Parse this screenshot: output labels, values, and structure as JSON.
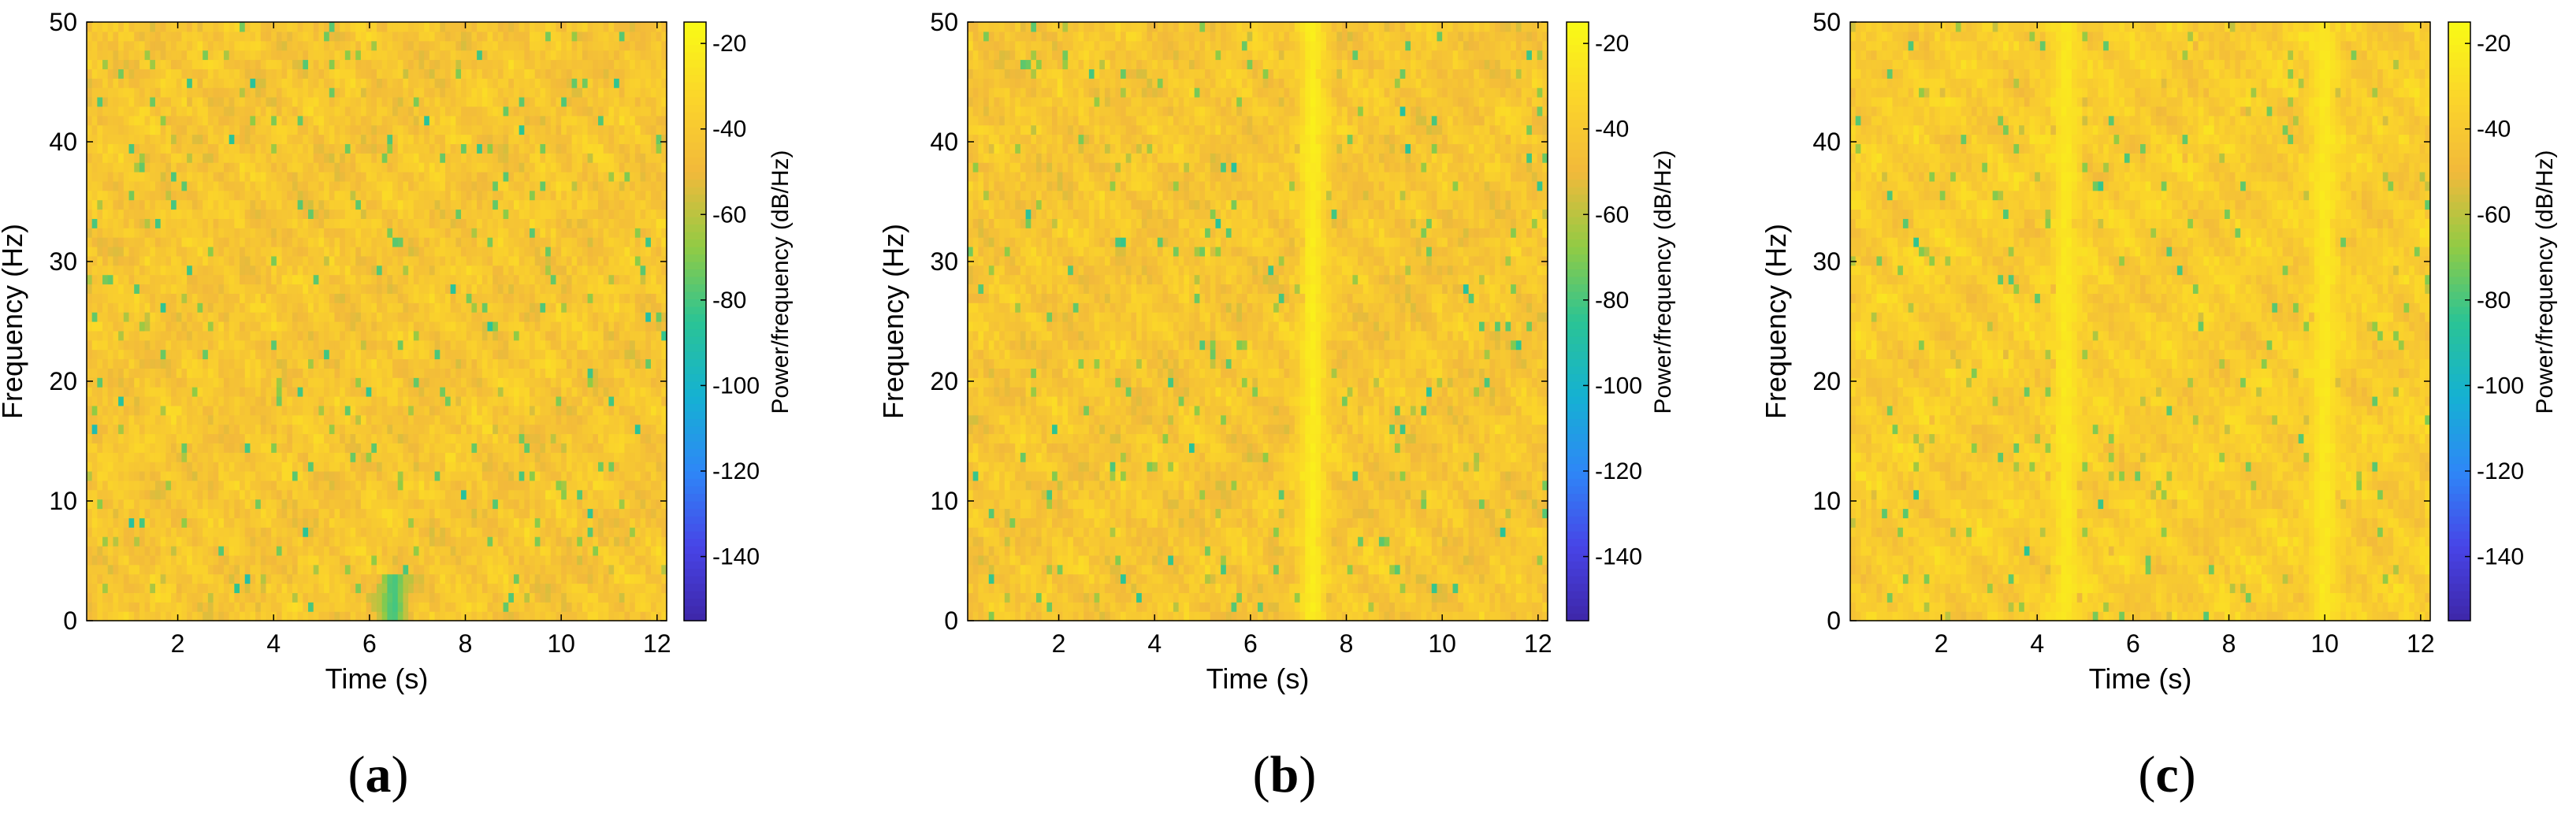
{
  "colors": {
    "colormap": [
      "#3e26a8",
      "#4745e7",
      "#2e87f7",
      "#15b1d2",
      "#2ac495",
      "#91cb44",
      "#f2b93b",
      "#fbd52a",
      "#f9fb15"
    ],
    "axis": "#000000",
    "background": "#ffffff"
  },
  "chart_data": [
    {
      "type": "heatmap",
      "panel_label": "a",
      "xlabel": "Time (s)",
      "ylabel": "Frequency (Hz)",
      "xlim": [
        0.1,
        12.2
      ],
      "ylim": [
        0,
        50
      ],
      "xticks": [
        2,
        4,
        6,
        8,
        10,
        12
      ],
      "yticks": [
        0,
        10,
        20,
        30,
        40,
        50
      ],
      "colorbar": {
        "label": "Power/frequency (dB/Hz)",
        "clim": [
          -155,
          -15
        ],
        "ticks": [
          -20,
          -40,
          -60,
          -80,
          -100,
          -120,
          -140
        ]
      },
      "typical_power_db": -42,
      "variation_db": 14,
      "features": [
        {
          "description": "low-power streak",
          "time_s": 6.5,
          "freq_range_hz": [
            0,
            4
          ],
          "power_db": -80
        }
      ],
      "seed": 11
    },
    {
      "type": "heatmap",
      "panel_label": "b",
      "xlabel": "Time (s)",
      "ylabel": "Frequency (Hz)",
      "xlim": [
        0.1,
        12.2
      ],
      "ylim": [
        0,
        50
      ],
      "xticks": [
        2,
        4,
        6,
        8,
        10,
        12
      ],
      "yticks": [
        0,
        10,
        20,
        30,
        40,
        50
      ],
      "colorbar": {
        "label": "Power/frequency (dB/Hz)",
        "clim": [
          -155,
          -15
        ],
        "ticks": [
          -20,
          -40,
          -60,
          -80,
          -100,
          -120,
          -140
        ]
      },
      "typical_power_db": -42,
      "variation_db": 14,
      "features": [
        {
          "description": "high-power vertical band",
          "time_s": 7.3,
          "freq_range_hz": [
            0,
            50
          ],
          "power_db": -22
        }
      ],
      "seed": 23
    },
    {
      "type": "heatmap",
      "panel_label": "c",
      "xlabel": "Time (s)",
      "ylabel": "Frequency (Hz)",
      "xlim": [
        0.1,
        12.2
      ],
      "ylim": [
        0,
        50
      ],
      "xticks": [
        2,
        4,
        6,
        8,
        10,
        12
      ],
      "yticks": [
        0,
        10,
        20,
        30,
        40,
        50
      ],
      "colorbar": {
        "label": "Power/frequency (dB/Hz)",
        "clim": [
          -155,
          -15
        ],
        "ticks": [
          -20,
          -40,
          -60,
          -80,
          -100,
          -120,
          -140
        ]
      },
      "typical_power_db": -38,
      "variation_db": 12,
      "features": [
        {
          "description": "high-power vertical band",
          "time_s": 4.6,
          "freq_range_hz": [
            0,
            50
          ],
          "power_db": -24
        },
        {
          "description": "high-power vertical band",
          "time_s": 10.0,
          "freq_range_hz": [
            0,
            50
          ],
          "power_db": -24
        }
      ],
      "seed": 37
    }
  ]
}
